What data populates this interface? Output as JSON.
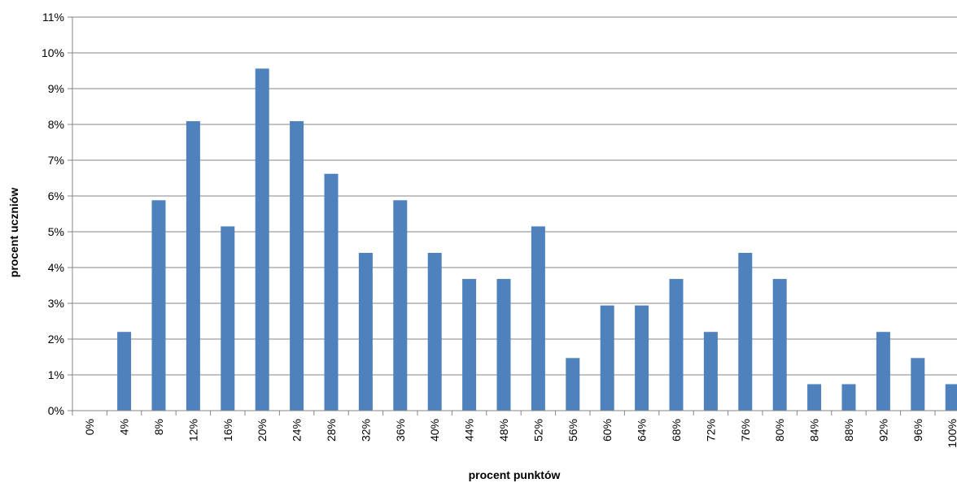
{
  "chart_data": {
    "type": "bar",
    "title": "",
    "xlabel": "procent  punktów",
    "ylabel": "procent  uczniów",
    "categories": [
      "0%",
      "4%",
      "8%",
      "12%",
      "16%",
      "20%",
      "24%",
      "28%",
      "32%",
      "36%",
      "40%",
      "44%",
      "48%",
      "52%",
      "56%",
      "60%",
      "64%",
      "68%",
      "72%",
      "76%",
      "80%",
      "84%",
      "88%",
      "92%",
      "96%",
      "100%"
    ],
    "values": [
      0,
      2.2,
      5.88,
      8.09,
      5.15,
      9.56,
      8.09,
      6.62,
      4.41,
      5.88,
      4.41,
      3.68,
      3.68,
      5.15,
      1.47,
      2.94,
      2.94,
      3.68,
      2.2,
      4.41,
      3.68,
      0.74,
      0.74,
      2.2,
      1.47,
      0.74
    ],
    "ylim": [
      0,
      11
    ],
    "yticks": [
      "0%",
      "1%",
      "2%",
      "3%",
      "4%",
      "5%",
      "6%",
      "7%",
      "8%",
      "9%",
      "10%",
      "11%"
    ],
    "grid": true,
    "bar_color": "#4F81BD",
    "grid_color": "#868686"
  }
}
